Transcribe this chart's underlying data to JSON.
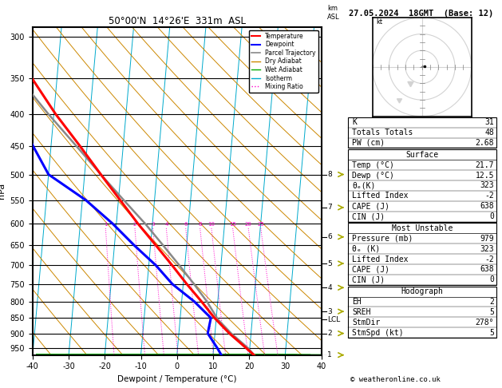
{
  "title_left": "50°00'N  14°26'E  331m  ASL",
  "title_right": "27.05.2024  18GMT  (Base: 12)",
  "xlabel": "Dewpoint / Temperature (°C)",
  "ylabel_left": "hPa",
  "pressure_levels": [
    300,
    350,
    400,
    450,
    500,
    550,
    600,
    650,
    700,
    750,
    800,
    850,
    900,
    950
  ],
  "km_ticks": [
    1,
    2,
    3,
    4,
    5,
    6,
    7,
    8
  ],
  "km_pressures": [
    975,
    900,
    830,
    760,
    695,
    630,
    565,
    500
  ],
  "lcl_pressure": 855,
  "pmin": 290,
  "pmax": 975,
  "xmin": -40,
  "xmax": 40,
  "skew_factor": 8.0,
  "temp_profile_p": [
    979,
    950,
    900,
    850,
    800,
    750,
    700,
    650,
    600,
    550,
    500,
    450,
    400,
    350,
    300
  ],
  "temp_profile_t": [
    21.7,
    19.0,
    14.0,
    9.5,
    5.5,
    1.0,
    -3.5,
    -8.5,
    -14.0,
    -19.5,
    -25.5,
    -32.0,
    -39.5,
    -47.0,
    -55.0
  ],
  "dewp_profile_p": [
    979,
    950,
    900,
    850,
    800,
    750,
    700,
    650,
    600,
    550,
    500,
    450,
    400,
    350,
    300
  ],
  "dewp_profile_t": [
    12.5,
    11.0,
    8.0,
    8.5,
    3.5,
    -3.0,
    -8.0,
    -14.5,
    -21.0,
    -29.0,
    -40.0,
    -45.0,
    -50.0,
    -56.0,
    -63.0
  ],
  "parcel_profile_p": [
    979,
    950,
    900,
    855,
    800,
    750,
    700,
    650,
    600,
    550,
    500,
    450,
    400,
    350,
    300
  ],
  "parcel_profile_t": [
    21.7,
    19.5,
    14.5,
    10.5,
    7.0,
    3.0,
    -1.5,
    -6.5,
    -12.0,
    -18.5,
    -25.5,
    -33.0,
    -41.5,
    -50.5,
    -60.0
  ],
  "dry_adiabat_color": "#cc8800",
  "wet_adiabat_color": "#00aa00",
  "isotherm_color": "#00aacc",
  "mixing_ratio_color": "#ff00cc",
  "temp_color": "#ff0000",
  "dewp_color": "#0000ff",
  "parcel_color": "#888888",
  "mixing_ratio_values": [
    1,
    2,
    3,
    4,
    6,
    8,
    10,
    15,
    20,
    25
  ],
  "mixing_ratio_label_p": 590,
  "K": "31",
  "Totals_Totals": "48",
  "PW": "2.68",
  "Surf_Temp": "21.7",
  "Surf_Dewp": "12.5",
  "Surf_theta": "323",
  "Surf_LI": "-2",
  "Surf_CAPE": "638",
  "Surf_CIN": "0",
  "MU_Pressure": "979",
  "MU_theta": "323",
  "MU_LI": "-2",
  "MU_CAPE": "638",
  "MU_CIN": "0",
  "EH": "2",
  "SREH": "5",
  "StmDir": "278°",
  "StmSpd": "5"
}
